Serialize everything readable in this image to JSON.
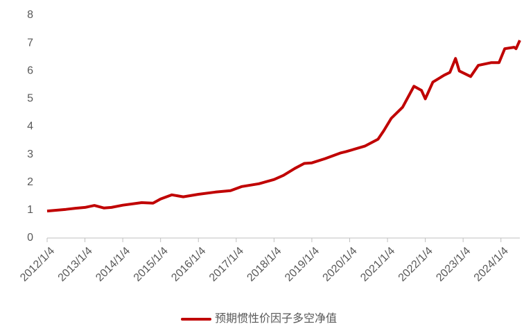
{
  "chart_data": {
    "type": "line",
    "xlim": [
      2012,
      2024.5
    ],
    "xticks": [
      {
        "value": 2012,
        "label": "2012/1/4"
      },
      {
        "value": 2013,
        "label": "2013/1/4"
      },
      {
        "value": 2014,
        "label": "2014/1/4"
      },
      {
        "value": 2015,
        "label": "2015/1/4"
      },
      {
        "value": 2016,
        "label": "2016/1/4"
      },
      {
        "value": 2017,
        "label": "2017/1/4"
      },
      {
        "value": 2018,
        "label": "2018/1/4"
      },
      {
        "value": 2019,
        "label": "2019/1/4"
      },
      {
        "value": 2020,
        "label": "2020/1/4"
      },
      {
        "value": 2021,
        "label": "2021/1/4"
      },
      {
        "value": 2022,
        "label": "2022/1/4"
      },
      {
        "value": 2023,
        "label": "2023/1/4"
      },
      {
        "value": 2024,
        "label": "2024/1/4"
      }
    ],
    "ylim": [
      0,
      8
    ],
    "yticks": [
      0,
      1,
      2,
      3,
      4,
      5,
      6,
      7,
      8
    ],
    "grid": false,
    "legend": "bottom",
    "x": [
      2012,
      2012.5,
      2012.75,
      2013,
      2013.25,
      2013.5,
      2013.7,
      2014,
      2014.5,
      2014.8,
      2015,
      2015.3,
      2015.6,
      2016,
      2016.45,
      2016.85,
      2017.15,
      2017.6,
      2018,
      2018.25,
      2018.55,
      2018.8,
      2019,
      2019.35,
      2019.75,
      2019.9,
      2020.4,
      2020.75,
      2020.9,
      2021.1,
      2021.4,
      2021.7,
      2021.9,
      2022,
      2022.2,
      2022.5,
      2022.65,
      2022.8,
      2022.9,
      2023.2,
      2023.4,
      2023.75,
      2023.95,
      2024.1,
      2024.35,
      2024.4,
      2024.5
    ],
    "series": [
      {
        "name": "预期惯性价因子多空净值",
        "color": "#c00000",
        "values": [
          0.97,
          1.03,
          1.07,
          1.1,
          1.17,
          1.08,
          1.1,
          1.18,
          1.27,
          1.25,
          1.4,
          1.55,
          1.48,
          1.57,
          1.65,
          1.7,
          1.85,
          1.95,
          2.1,
          2.25,
          2.5,
          2.68,
          2.7,
          2.85,
          3.05,
          3.1,
          3.3,
          3.55,
          3.85,
          4.3,
          4.7,
          5.45,
          5.3,
          5.0,
          5.6,
          5.85,
          5.95,
          6.45,
          6.0,
          5.8,
          6.2,
          6.3,
          6.3,
          6.8,
          6.85,
          6.8,
          7.1
        ]
      }
    ]
  }
}
